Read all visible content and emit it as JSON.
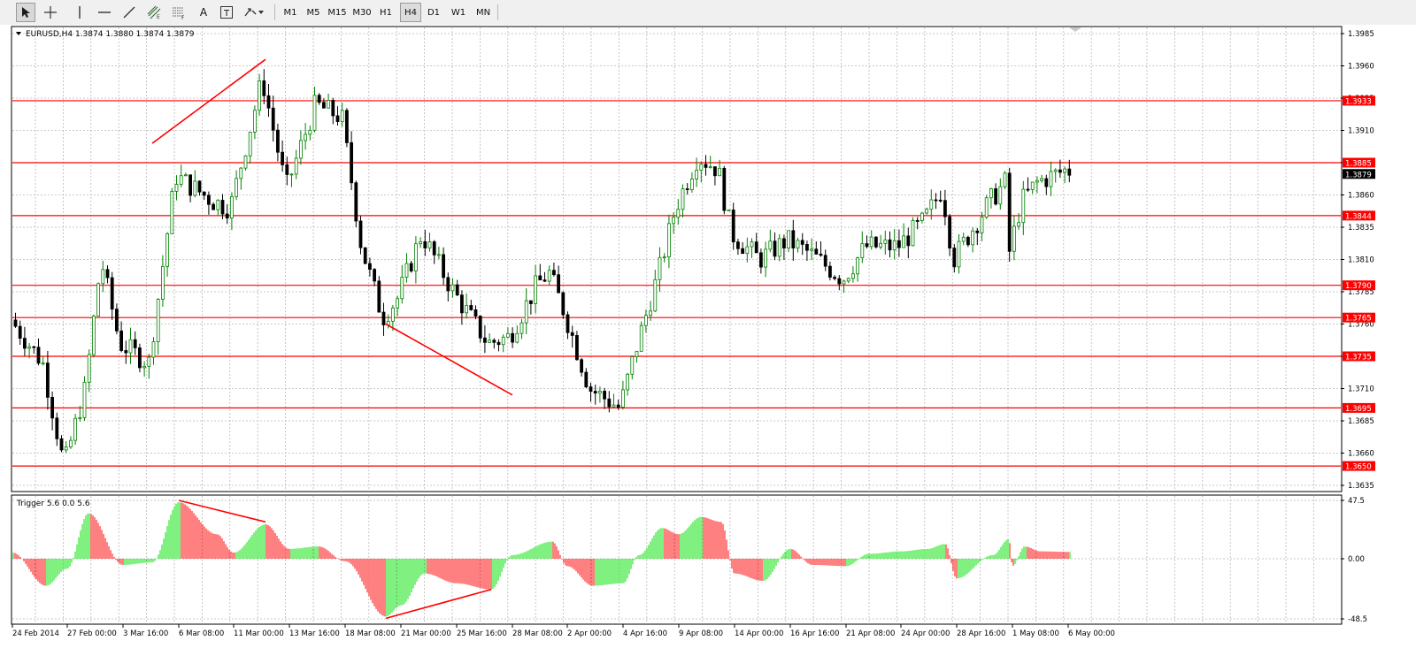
{
  "toolbar": {
    "tools": [
      {
        "name": "cursor-arrow-icon"
      },
      {
        "name": "crosshair-icon"
      },
      {
        "name": "vertical-line-icon"
      },
      {
        "name": "horizontal-line-icon"
      },
      {
        "name": "trendline-icon"
      },
      {
        "name": "equidistant-channel-icon"
      },
      {
        "name": "fibonacci-retracement-icon"
      },
      {
        "name": "text-tool-icon",
        "label": "A"
      },
      {
        "name": "text-label-icon",
        "label": "T"
      },
      {
        "name": "arrows-menu-icon"
      }
    ],
    "timeframes": [
      "M1",
      "M5",
      "M15",
      "M30",
      "H1",
      "H4",
      "D1",
      "W1",
      "MN"
    ],
    "active_timeframe": "H4"
  },
  "main_panel": {
    "symbol_header": "EURUSD,H4  1.3874 1.3880 1.3874 1.3879",
    "price_axis": [
      "1.3985",
      "1.3960",
      "1.3935",
      "1.3910",
      "1.3885",
      "1.3860",
      "1.3835",
      "1.3810",
      "1.3785",
      "1.3760",
      "1.3735",
      "1.3710",
      "1.3685",
      "1.3660",
      "1.3635"
    ],
    "current_price": "1.3879",
    "levels": [
      {
        "label": "1.3933",
        "price": 1.3933
      },
      {
        "label": "1.3885",
        "price": 1.3885
      },
      {
        "label": "1.3844",
        "price": 1.3844
      },
      {
        "label": "1.3790",
        "price": 1.379
      },
      {
        "label": "1.3765",
        "price": 1.3765
      },
      {
        "label": "1.3735",
        "price": 1.3735
      },
      {
        "label": "1.3695",
        "price": 1.3695
      },
      {
        "label": "1.3650",
        "price": 1.365
      }
    ],
    "level_color": "#ff0000",
    "bull_color": "#008000",
    "bear_color": "#000000"
  },
  "indicator_panel": {
    "header": "Trigger 5.6 0.0 5.6",
    "axis": [
      "47.5",
      "0.00",
      "-48.5"
    ],
    "pos_color": "#00e000",
    "neg_color": "#ff0000"
  },
  "time_axis": [
    "24 Feb 2014",
    "27 Feb 00:00",
    "3 Mar 16:00",
    "6 Mar 08:00",
    "11 Mar 00:00",
    "13 Mar 16:00",
    "18 Mar 08:00",
    "21 Mar 00:00",
    "25 Mar 16:00",
    "28 Mar 08:00",
    "2 Apr 00:00",
    "4 Apr 16:00",
    "9 Apr 08:00",
    "14 Apr 00:00",
    "16 Apr 16:00",
    "21 Apr 08:00",
    "24 Apr 00:00",
    "28 Apr 16:00",
    "1 May 08:00",
    "6 May 00:00"
  ],
  "chart_data": {
    "type": "candlestick",
    "symbol": "EURUSD",
    "timeframe": "H4",
    "series_keypoints": [
      {
        "t": "24 Feb 2014",
        "price": 1.3765
      },
      {
        "t": "26 Feb",
        "price": 1.373
      },
      {
        "t": "27 Feb 00:00",
        "price": 1.365
      },
      {
        "t": "28 Feb",
        "price": 1.371
      },
      {
        "t": "28 Feb (late)",
        "price": 1.381
      },
      {
        "t": "3 Mar 16:00",
        "price": 1.3745
      },
      {
        "t": "5 Mar",
        "price": 1.373
      },
      {
        "t": "6 Mar 08:00",
        "price": 1.3875
      },
      {
        "t": "10 Mar",
        "price": 1.3855
      },
      {
        "t": "11 Mar 00:00",
        "price": 1.385
      },
      {
        "t": "12 Mar",
        "price": 1.395
      },
      {
        "t": "13 Mar 16:00",
        "price": 1.3865
      },
      {
        "t": "14 Mar",
        "price": 1.393
      },
      {
        "t": "18 Mar 08:00",
        "price": 1.392
      },
      {
        "t": "19 Mar",
        "price": 1.382
      },
      {
        "t": "20 Mar",
        "price": 1.3765
      },
      {
        "t": "21 Mar 00:00",
        "price": 1.378
      },
      {
        "t": "24 Mar",
        "price": 1.383
      },
      {
        "t": "25 Mar 16:00",
        "price": 1.3785
      },
      {
        "t": "27 Mar",
        "price": 1.3745
      },
      {
        "t": "28 Mar 08:00",
        "price": 1.375
      },
      {
        "t": "31 Mar",
        "price": 1.379
      },
      {
        "t": "1 Apr",
        "price": 1.38
      },
      {
        "t": "2 Apr 00:00",
        "price": 1.377
      },
      {
        "t": "3 Apr",
        "price": 1.371
      },
      {
        "t": "4 Apr 16:00",
        "price": 1.3695
      },
      {
        "t": "7 Apr",
        "price": 1.374
      },
      {
        "t": "8 Apr",
        "price": 1.38
      },
      {
        "t": "9 Apr 08:00",
        "price": 1.385
      },
      {
        "t": "10 Apr",
        "price": 1.389
      },
      {
        "t": "11 Apr",
        "price": 1.388
      },
      {
        "t": "14 Apr 00:00",
        "price": 1.383
      },
      {
        "t": "15 Apr",
        "price": 1.381
      },
      {
        "t": "16 Apr 16:00",
        "price": 1.3825
      },
      {
        "t": "17 Apr",
        "price": 1.3815
      },
      {
        "t": "21 Apr 08:00",
        "price": 1.3795
      },
      {
        "t": "22 Apr",
        "price": 1.382
      },
      {
        "t": "24 Apr 00:00",
        "price": 1.382
      },
      {
        "t": "25 Apr",
        "price": 1.384
      },
      {
        "t": "28 Apr",
        "price": 1.3865
      },
      {
        "t": "28 Apr 16:00",
        "price": 1.381
      },
      {
        "t": "29 Apr",
        "price": 1.3855
      },
      {
        "t": "30 Apr",
        "price": 1.387
      },
      {
        "t": "1 May",
        "price": 1.3855
      },
      {
        "t": "1 May 08:00",
        "price": 1.3815
      },
      {
        "t": "2 May",
        "price": 1.387
      },
      {
        "t": "6 May 00:00",
        "price": 1.3879
      }
    ],
    "trendlines": [
      {
        "panel": "price",
        "from": {
          "t": "5 Mar",
          "price": 1.39
        },
        "to": {
          "t": "12 Mar",
          "price": 1.3965
        }
      },
      {
        "panel": "price",
        "from": {
          "t": "20 Mar",
          "price": 1.376
        },
        "to": {
          "t": "28 Mar 08:00",
          "price": 1.3705
        }
      },
      {
        "panel": "indicator",
        "from": {
          "t": "6 Mar 08:00",
          "value": 47.5
        },
        "to": {
          "t": "12 Mar",
          "value": 30
        }
      },
      {
        "panel": "indicator",
        "from": {
          "t": "20 Mar",
          "value": -48.5
        },
        "to": {
          "t": "27 Mar",
          "value": -25
        }
      }
    ],
    "indicator_keypoints": [
      {
        "t": "24 Feb 2014",
        "value": 5
      },
      {
        "t": "26 Feb",
        "value": -22
      },
      {
        "t": "27 Feb 00:00",
        "value": -8
      },
      {
        "t": "28 Feb",
        "value": 37
      },
      {
        "t": "3 Mar 16:00",
        "value": -5
      },
      {
        "t": "5 Mar",
        "value": -3
      },
      {
        "t": "6 Mar 08:00",
        "value": 46
      },
      {
        "t": "10 Mar",
        "value": 20
      },
      {
        "t": "11 Mar 00:00",
        "value": 5
      },
      {
        "t": "12 Mar",
        "value": 28
      },
      {
        "t": "13 Mar 16:00",
        "value": 8
      },
      {
        "t": "14 Mar",
        "value": 10
      },
      {
        "t": "18 Mar 08:00",
        "value": -2
      },
      {
        "t": "20 Mar",
        "value": -47
      },
      {
        "t": "21 Mar 00:00",
        "value": -38
      },
      {
        "t": "24 Mar",
        "value": -12
      },
      {
        "t": "25 Mar 16:00",
        "value": -20
      },
      {
        "t": "27 Mar",
        "value": -25
      },
      {
        "t": "28 Mar 08:00",
        "value": 3
      },
      {
        "t": "1 Apr",
        "value": 14
      },
      {
        "t": "2 Apr 00:00",
        "value": -6
      },
      {
        "t": "3 Apr",
        "value": -22
      },
      {
        "t": "4 Apr 16:00",
        "value": -20
      },
      {
        "t": "7 Apr",
        "value": 3
      },
      {
        "t": "8 Apr",
        "value": 25
      },
      {
        "t": "9 Apr 08:00",
        "value": 20
      },
      {
        "t": "10 Apr",
        "value": 34
      },
      {
        "t": "11 Apr",
        "value": 30
      },
      {
        "t": "14 Apr 00:00",
        "value": -12
      },
      {
        "t": "15 Apr",
        "value": -18
      },
      {
        "t": "16 Apr 16:00",
        "value": 8
      },
      {
        "t": "17 Apr",
        "value": -5
      },
      {
        "t": "21 Apr 08:00",
        "value": -6
      },
      {
        "t": "22 Apr",
        "value": 4
      },
      {
        "t": "24 Apr 00:00",
        "value": 6
      },
      {
        "t": "25 Apr",
        "value": 8
      },
      {
        "t": "28 Apr",
        "value": 12
      },
      {
        "t": "28 Apr 16:00",
        "value": -16
      },
      {
        "t": "29 Apr",
        "value": 3
      },
      {
        "t": "30 Apr",
        "value": 16
      },
      {
        "t": "1 May",
        "value": 10
      },
      {
        "t": "1 May 08:00",
        "value": -6
      },
      {
        "t": "2 May",
        "value": 6
      },
      {
        "t": "6 May 00:00",
        "value": 5.6
      }
    ]
  }
}
